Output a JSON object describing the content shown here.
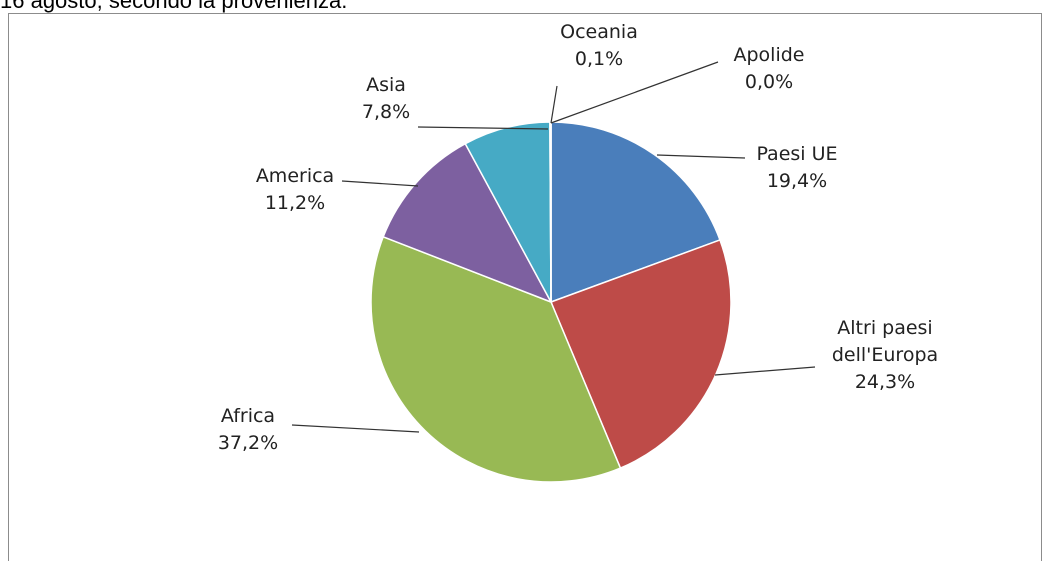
{
  "caption": "16 agosto, secondo la provenienza.",
  "chart_data": {
    "type": "pie",
    "title": "",
    "start_angle_deg": 0,
    "direction": "clockwise",
    "colors": {
      "Paesi UE": "#4a7ebb",
      "Altri paesi dell'Europa": "#be4b48",
      "Africa": "#98b954",
      "America": "#7d60a0",
      "Asia": "#46aac5",
      "Oceania": "#f79646",
      "Apolide": "#2c4d75"
    },
    "slices": [
      {
        "label": "Paesi UE",
        "value": 19.4,
        "label_lines": [
          "Paesi UE"
        ],
        "value_text": "19,4%"
      },
      {
        "label": "Altri paesi dell'Europa",
        "value": 24.3,
        "label_lines": [
          "Altri paesi",
          "dell'Europa"
        ],
        "value_text": "24,3%"
      },
      {
        "label": "Africa",
        "value": 37.2,
        "label_lines": [
          "Africa"
        ],
        "value_text": "37,2%"
      },
      {
        "label": "America",
        "value": 11.2,
        "label_lines": [
          "America"
        ],
        "value_text": "11,2%"
      },
      {
        "label": "Asia",
        "value": 7.8,
        "label_lines": [
          "Asia"
        ],
        "value_text": "7,8%"
      },
      {
        "label": "Oceania",
        "value": 0.1,
        "label_lines": [
          "Oceania"
        ],
        "value_text": "0,1%"
      },
      {
        "label": "Apolide",
        "value": 0.0,
        "label_lines": [
          "Apolide"
        ],
        "value_text": "0,0%"
      }
    ]
  }
}
